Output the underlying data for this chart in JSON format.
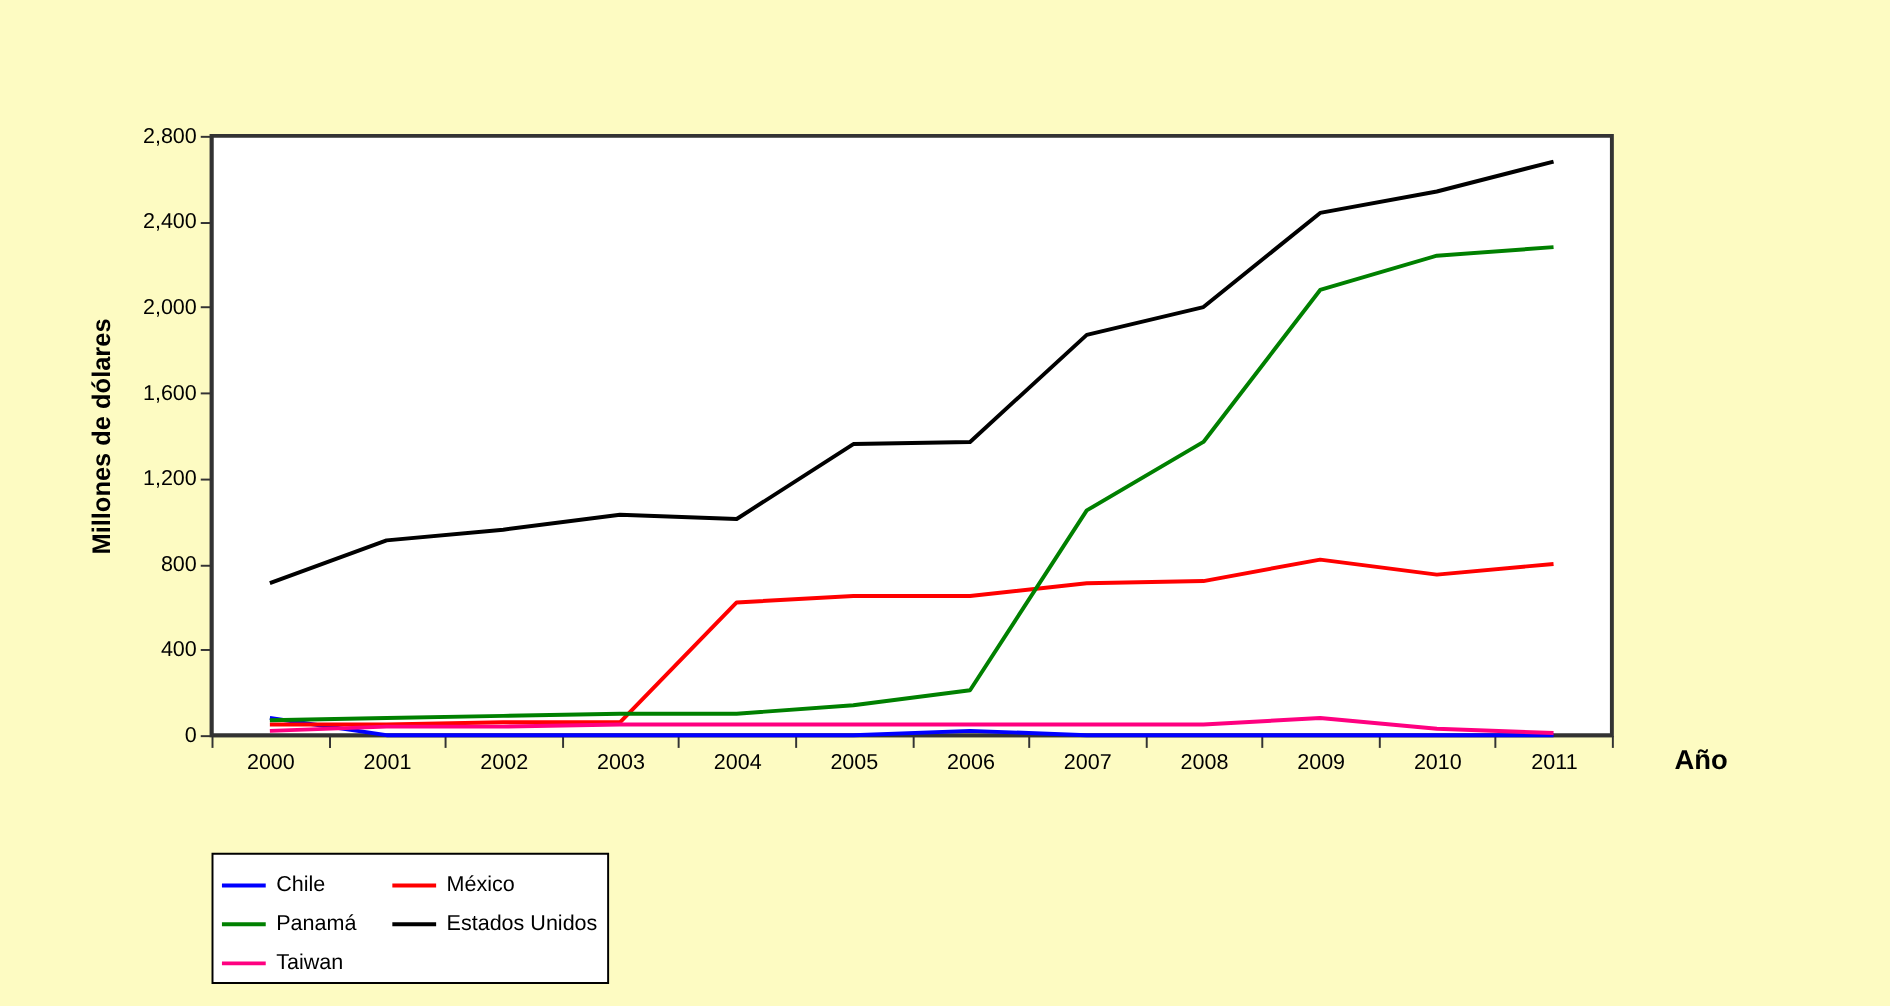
{
  "chart_data": {
    "type": "line",
    "xlabel": "Año",
    "ylabel": "Millones de dólares",
    "categories": [
      "2000",
      "2001",
      "2002",
      "2003",
      "2004",
      "2005",
      "2006",
      "2007",
      "2008",
      "2009",
      "2010",
      "2011"
    ],
    "series": [
      {
        "name": "Chile",
        "color": "#0000ff",
        "values": [
          80,
          0,
          0,
          0,
          0,
          0,
          20,
          0,
          0,
          0,
          0,
          0
        ]
      },
      {
        "name": "México",
        "color": "#ff0000",
        "values": [
          50,
          50,
          60,
          60,
          620,
          650,
          650,
          710,
          720,
          820,
          750,
          800
        ]
      },
      {
        "name": "Panamá",
        "color": "#008000",
        "values": [
          70,
          80,
          90,
          100,
          100,
          140,
          210,
          1050,
          1370,
          2080,
          2240,
          2280
        ]
      },
      {
        "name": "Estados Unidos",
        "color": "#000000",
        "values": [
          710,
          910,
          960,
          1030,
          1010,
          1360,
          1370,
          1870,
          2000,
          2440,
          2540,
          2680
        ]
      },
      {
        "name": "Taiwan",
        "color": "#ff0080",
        "values": [
          20,
          40,
          40,
          50,
          50,
          50,
          50,
          50,
          50,
          80,
          30,
          10
        ]
      }
    ],
    "ylim": [
      0,
      2800
    ],
    "yticks": [
      0,
      400,
      800,
      {
        "value": 1200,
        "label": "1,200"
      },
      {
        "value": 1600,
        "label": "1,600"
      },
      {
        "value": 2000,
        "label": "2,000"
      },
      {
        "value": 2400,
        "label": "2,400"
      },
      {
        "value": 2800,
        "label": "2,800"
      }
    ],
    "grid": false,
    "legend": "bottom",
    "marker": "none",
    "line_style": "solid"
  }
}
